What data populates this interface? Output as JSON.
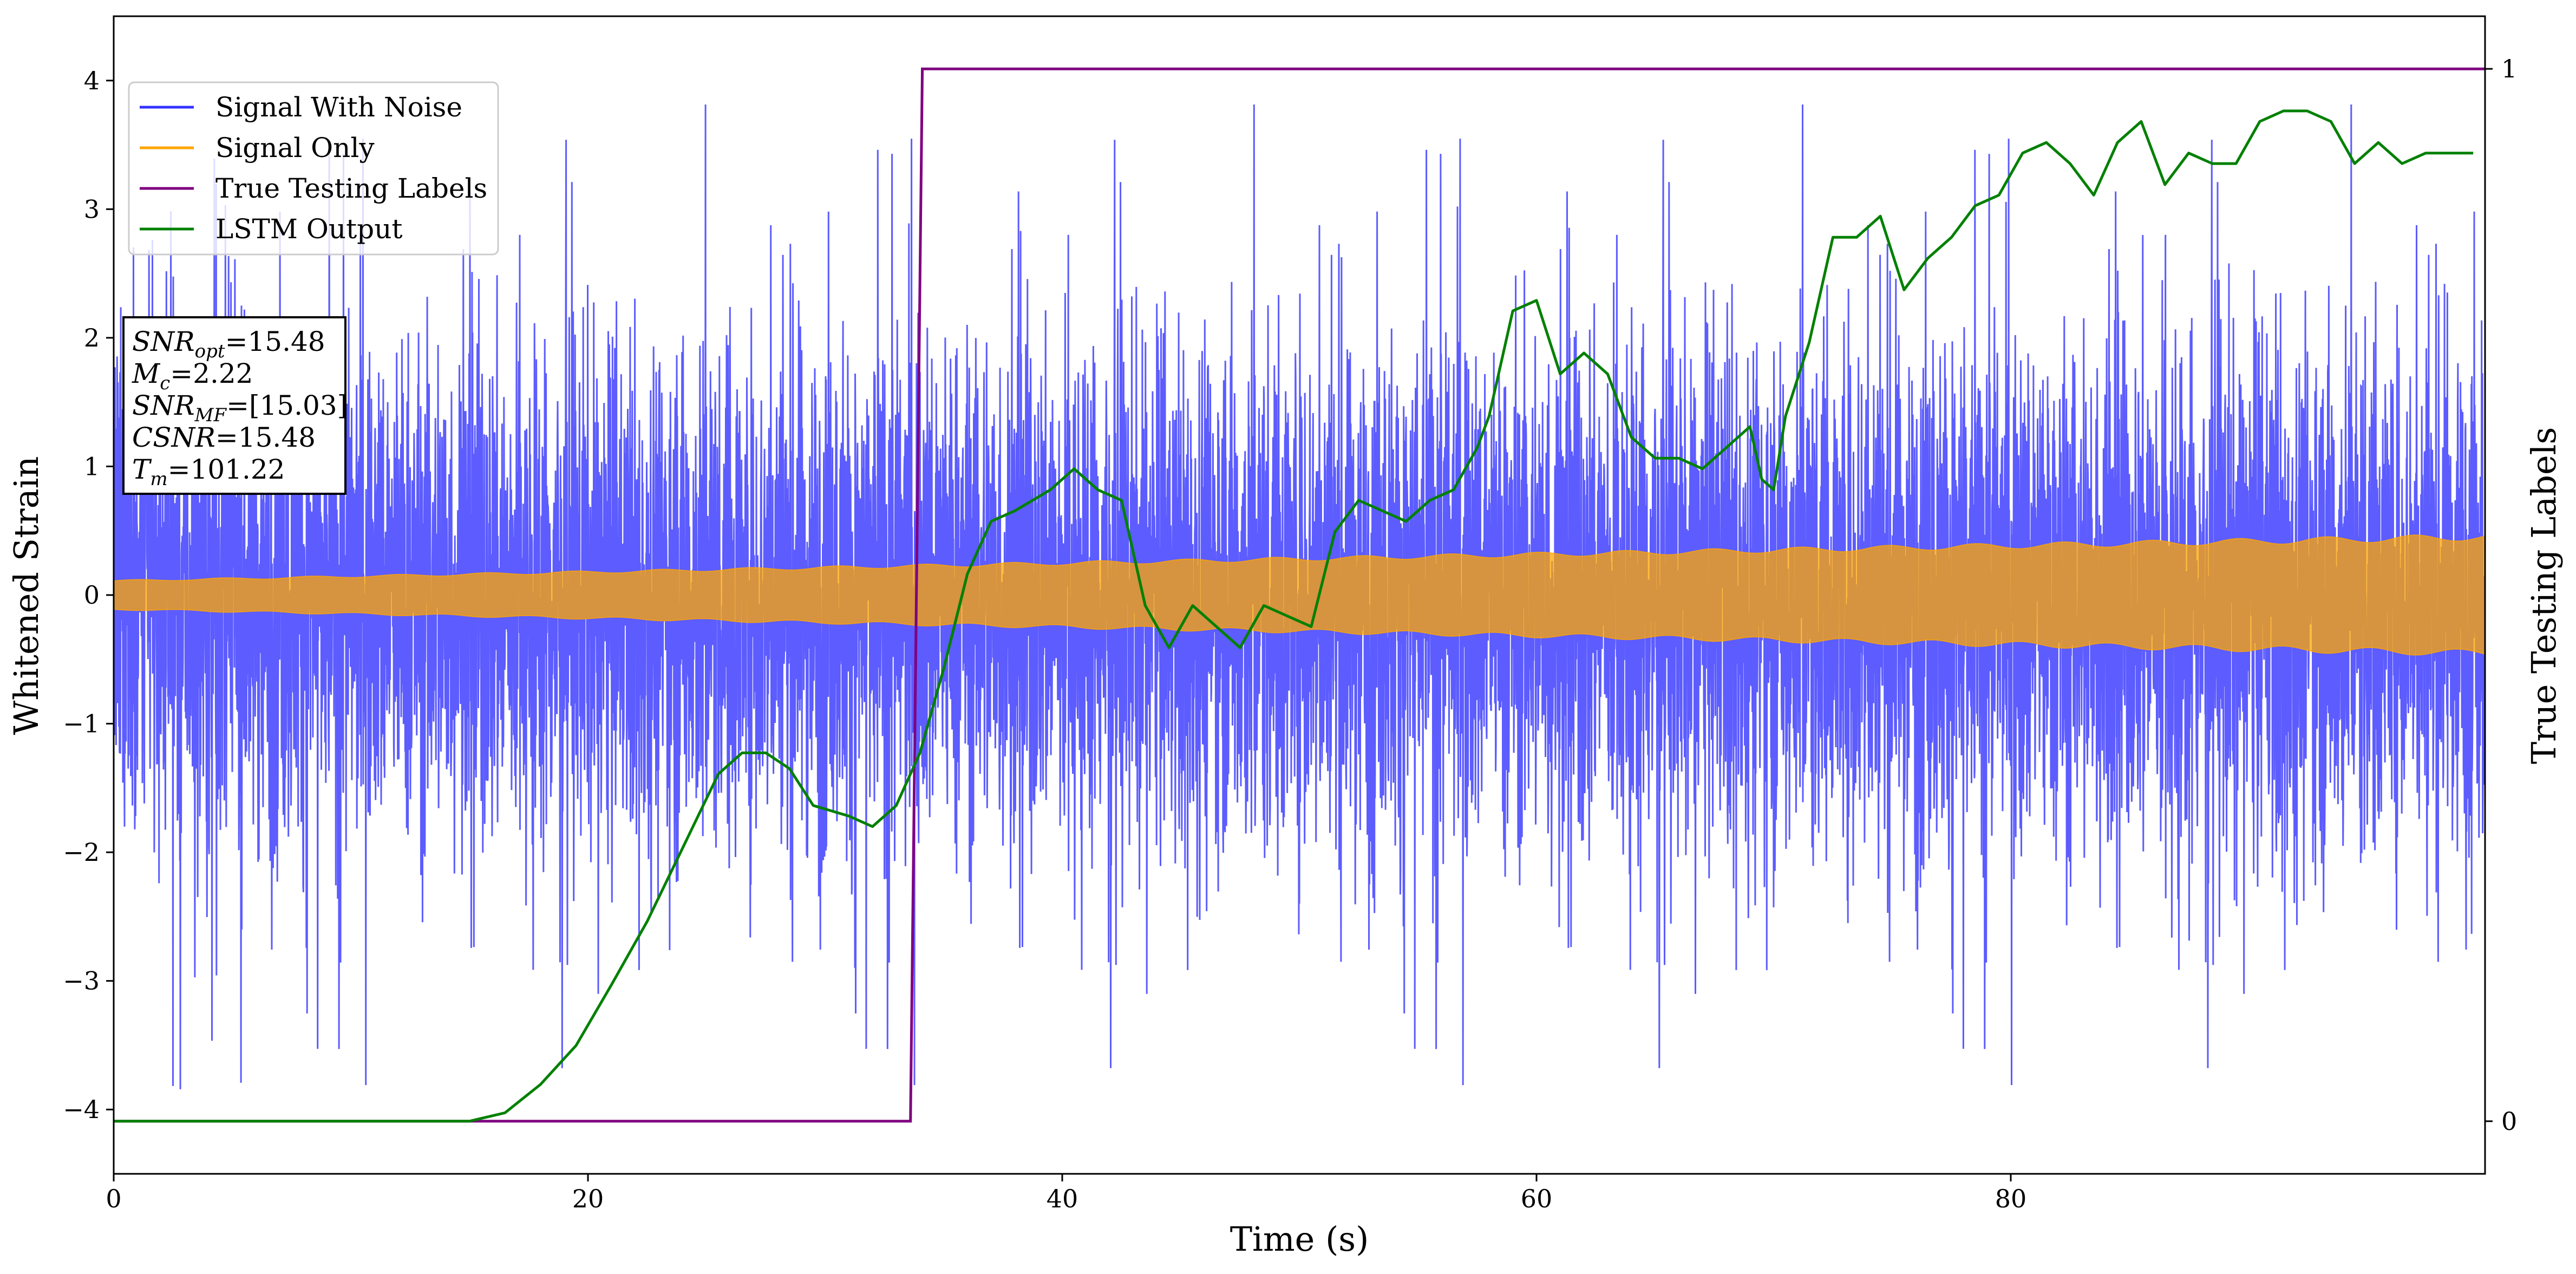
{
  "chart_data": {
    "type": "line",
    "xlabel": "Time (s)",
    "ylabel": "Whitened Strain",
    "y2label": "True Testing Labels",
    "xlim": [
      0,
      100
    ],
    "ylim": [
      -4.5,
      4.5
    ],
    "y2lim": [
      -0.05,
      1.05
    ],
    "x_ticks": [
      0,
      20,
      40,
      60,
      80
    ],
    "x_tick_labels": [
      "0",
      "20",
      "40",
      "60",
      "80"
    ],
    "y_ticks": [
      -4,
      -3,
      -2,
      -1,
      0,
      1,
      2,
      3,
      4
    ],
    "y_tick_labels": [
      "−4",
      "−3",
      "−2",
      "−1",
      "0",
      "1",
      "2",
      "3",
      "4"
    ],
    "y2_ticks": [
      0,
      1
    ],
    "y2_tick_labels": [
      "0",
      "1"
    ],
    "grid": false,
    "legend_position": "upper-left",
    "info_box": [
      {
        "symbol": "SNR",
        "sub": "opt",
        "value": "=15.48"
      },
      {
        "symbol": "M",
        "sub": "c",
        "value": "=2.22"
      },
      {
        "symbol": "SNR",
        "sub": "MF",
        "value": "=[15.03]"
      },
      {
        "symbol": "CSNR",
        "sub": "",
        "value": "=15.48"
      },
      {
        "symbol": "T",
        "sub": "m",
        "value": "=101.22"
      }
    ],
    "series": [
      {
        "name": "Signal With Noise",
        "axis": "left",
        "color": "#3333ff",
        "rendering": "dense noisy strain trace, roughly within ±2.5 with peaks near ±4",
        "noise_envelope": 2.5,
        "extreme_min": -4.05,
        "extreme_max": 3.95
      },
      {
        "name": "Signal Only",
        "axis": "left",
        "color": "#ffa500",
        "rendering": "chirp oscillation with amplitude growing from about 0.11 at t=0 to about 0.45 at t=100",
        "amplitude_start": 0.11,
        "amplitude_end": 0.45
      },
      {
        "name": "True Testing Labels",
        "axis": "right",
        "color": "#800080",
        "x": [
          0,
          33.6,
          34.1,
          100
        ],
        "y": [
          0,
          0,
          1,
          1
        ]
      },
      {
        "name": "LSTM Output",
        "axis": "right",
        "color": "#008000",
        "x": [
          0,
          5,
          10,
          15,
          16.5,
          18,
          19.5,
          21,
          22.5,
          24,
          25.5,
          26.5,
          27.5,
          28.5,
          29.5,
          31,
          32,
          33,
          34,
          35,
          36,
          37,
          38,
          39.5,
          40.5,
          41.5,
          42.5,
          43.5,
          44.5,
          45.5,
          46.5,
          47.5,
          48.5,
          49.5,
          50.5,
          51.5,
          52.5,
          53.5,
          54.5,
          55.5,
          56.5,
          57.5,
          58,
          59,
          60,
          61,
          62,
          63,
          64,
          65,
          66,
          67,
          68,
          69,
          69.5,
          70,
          70.5,
          71.5,
          72.5,
          73.5,
          74.5,
          75.5,
          76.5,
          77.5,
          78.5,
          79.5,
          80.5,
          81.5,
          82.5,
          83.5,
          84.5,
          85.5,
          86.5,
          87.5,
          88.5,
          89.5,
          90.5,
          91.5,
          92.5,
          93.5,
          94.5,
          95.5,
          96.5,
          97.5,
          98.5,
          99.5
        ],
        "y": [
          0.0,
          0.0,
          0.0,
          0.0,
          0.008,
          0.035,
          0.072,
          0.13,
          0.19,
          0.26,
          0.33,
          0.35,
          0.35,
          0.335,
          0.3,
          0.29,
          0.28,
          0.3,
          0.35,
          0.43,
          0.52,
          0.57,
          0.58,
          0.6,
          0.62,
          0.6,
          0.59,
          0.49,
          0.45,
          0.49,
          0.47,
          0.45,
          0.49,
          0.48,
          0.47,
          0.56,
          0.59,
          0.58,
          0.57,
          0.59,
          0.6,
          0.64,
          0.67,
          0.77,
          0.78,
          0.71,
          0.73,
          0.71,
          0.65,
          0.63,
          0.63,
          0.62,
          0.64,
          0.66,
          0.61,
          0.6,
          0.67,
          0.74,
          0.84,
          0.84,
          0.86,
          0.79,
          0.82,
          0.84,
          0.87,
          0.88,
          0.92,
          0.93,
          0.91,
          0.88,
          0.93,
          0.95,
          0.89,
          0.92,
          0.91,
          0.91,
          0.95,
          0.96,
          0.96,
          0.95,
          0.91,
          0.93,
          0.91,
          0.92,
          0.92,
          0.92
        ]
      }
    ]
  }
}
